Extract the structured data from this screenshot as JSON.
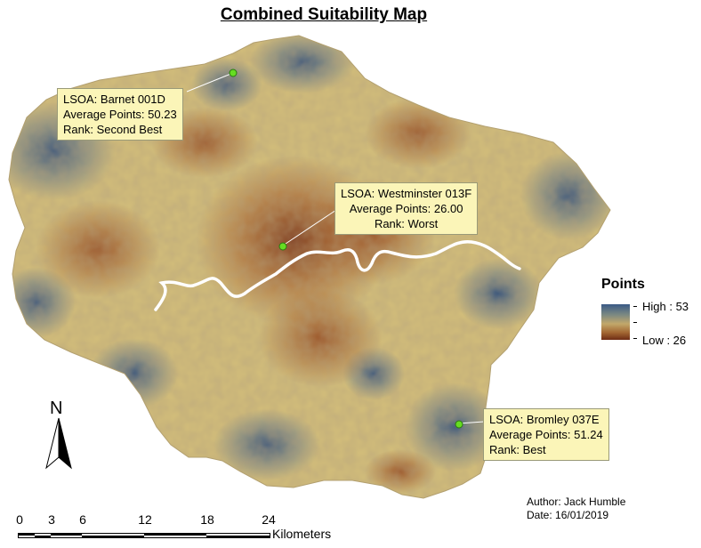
{
  "title": "Combined Suitability Map",
  "colors": {
    "high": "#31507c",
    "mid": "#d6c47a",
    "low": "#7a3216",
    "river": "#ffffff",
    "callout_bg": "#fbf5b8",
    "marker": "#66dd22"
  },
  "callouts": {
    "barnet": {
      "line1": "LSOA: Barnet 001D",
      "line2": "Average Points: 50.23",
      "line3": "Rank: Second Best"
    },
    "westminster": {
      "line1": "LSOA: Westminster 013F",
      "line2": "Average Points: 26.00",
      "line3": "Rank: Worst"
    },
    "bromley": {
      "line1": "LSOA: Bromley 037E",
      "line2": "Average Points: 51.24",
      "line3": "Rank: Best"
    }
  },
  "legend": {
    "title": "Points",
    "high_label": "High : 53",
    "low_label": "Low : 26",
    "high_value": 53,
    "low_value": 26
  },
  "north_arrow": {
    "label": "N",
    "icon": "north-arrow-icon"
  },
  "scale_bar": {
    "ticks": [
      "0",
      "3",
      "6",
      "12",
      "18",
      "24"
    ],
    "unit": "Kilometers"
  },
  "credits": {
    "author": "Author: Jack Humble",
    "date": "Date: 16/01/2019"
  }
}
